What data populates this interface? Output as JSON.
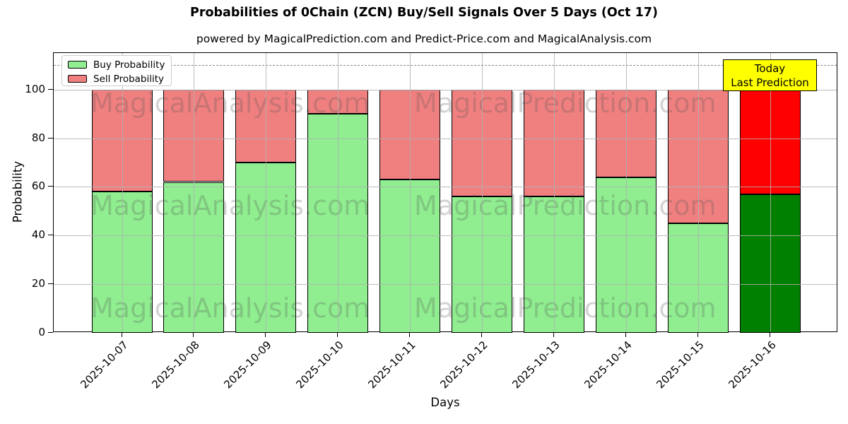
{
  "chart_data": {
    "type": "bar",
    "stacked": true,
    "title": "Probabilities of 0Chain (ZCN) Buy/Sell Signals Over 5 Days (Oct 17)",
    "subtitle": "powered by MagicalPrediction.com and Predict-Price.com and MagicalAnalysis.com",
    "xlabel": "Days",
    "ylabel": "Probability",
    "categories": [
      "2025-10-07",
      "2025-10-08",
      "2025-10-09",
      "2025-10-10",
      "2025-10-11",
      "2025-10-12",
      "2025-10-13",
      "2025-10-14",
      "2025-10-15",
      "2025-10-16"
    ],
    "series": [
      {
        "name": "Buy Probability",
        "color": "#90EE90",
        "today_color": "#008000",
        "values": [
          58,
          62,
          70,
          90,
          63,
          56,
          56,
          64,
          45,
          57
        ]
      },
      {
        "name": "Sell Probability",
        "color": "#F08080",
        "today_color": "#FF0000",
        "values": [
          42,
          38,
          30,
          10,
          37,
          44,
          44,
          36,
          55,
          43
        ]
      }
    ],
    "yticks": [
      0,
      20,
      40,
      60,
      80,
      100
    ],
    "ylim": [
      0,
      115
    ],
    "dashed_line_y": 110,
    "grid": true,
    "legend_position": "upper-left",
    "bar_edge_color": "#000000"
  },
  "annotation": {
    "lines": [
      "Today",
      "Last Prediction"
    ],
    "bg_color": "#FFFF00"
  },
  "watermarks": {
    "left_text": "MagicalAnalysis.com",
    "right_text": "MagicalPrediction.com"
  }
}
